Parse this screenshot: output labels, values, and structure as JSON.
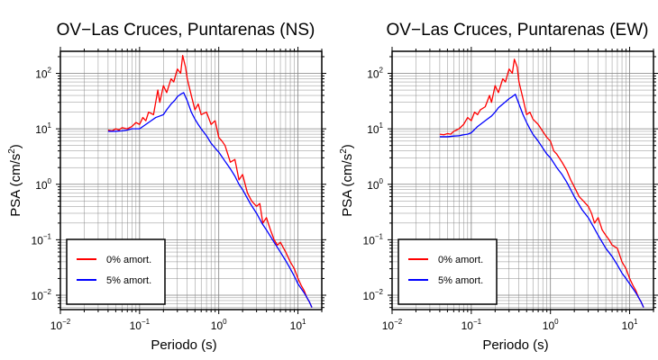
{
  "chart_data": [
    {
      "type": "line",
      "title": "OV−Las Cruces, Puntarenas (NS)",
      "xlabel": "Periodo (s)",
      "ylabel": "PSA (cm/s²)",
      "ylabel_base": "PSA (cm/s",
      "ylabel_sup": "2",
      "ylabel_end": ")",
      "xscale": "log",
      "yscale": "log",
      "xlim": [
        0.01,
        20
      ],
      "ylim": [
        0.0055,
        250
      ],
      "x_major_ticks": [
        0.01,
        0.1,
        1,
        10
      ],
      "y_major_ticks": [
        0.01,
        0.1,
        1,
        10,
        100
      ],
      "x_tick_labels": [
        {
          "base": "10",
          "exp": "−2"
        },
        {
          "base": "10",
          "exp": "−1"
        },
        {
          "base": "10",
          "exp": "0"
        },
        {
          "base": "10",
          "exp": "1"
        }
      ],
      "y_tick_labels": [
        {
          "base": "10",
          "exp": "−2"
        },
        {
          "base": "10",
          "exp": "−1"
        },
        {
          "base": "10",
          "exp": "0"
        },
        {
          "base": "10",
          "exp": "1"
        },
        {
          "base": "10",
          "exp": "2"
        }
      ],
      "grid": true,
      "legend_position": "bottom-left",
      "series": [
        {
          "name": "0% amort.",
          "color": "#ff0000",
          "x": [
            0.04,
            0.045,
            0.05,
            0.055,
            0.06,
            0.07,
            0.08,
            0.09,
            0.1,
            0.11,
            0.12,
            0.13,
            0.15,
            0.17,
            0.18,
            0.2,
            0.22,
            0.25,
            0.27,
            0.3,
            0.33,
            0.35,
            0.38,
            0.4,
            0.45,
            0.5,
            0.55,
            0.6,
            0.7,
            0.8,
            0.9,
            1.0,
            1.1,
            1.2,
            1.4,
            1.6,
            1.8,
            2.0,
            2.3,
            2.6,
            3.0,
            3.3,
            3.6,
            4.0,
            4.5,
            5.0,
            5.5,
            6.0,
            7.0,
            8.0,
            9.0,
            10,
            11,
            12,
            13,
            14,
            15
          ],
          "y": [
            9.5,
            9.2,
            10,
            9.5,
            10.5,
            10,
            11,
            13,
            12,
            16,
            14,
            20,
            18,
            50,
            30,
            60,
            45,
            80,
            70,
            120,
            100,
            210,
            130,
            80,
            40,
            22,
            28,
            18,
            20,
            12,
            14,
            7,
            6,
            5,
            2.5,
            2.8,
            1.2,
            1.5,
            0.7,
            0.5,
            0.4,
            0.45,
            0.2,
            0.25,
            0.15,
            0.1,
            0.08,
            0.09,
            0.06,
            0.04,
            0.03,
            0.02,
            0.015,
            0.012,
            0.009,
            0.0075,
            0.006
          ]
        },
        {
          "name": "5% amort.",
          "color": "#0000ff",
          "x": [
            0.04,
            0.05,
            0.06,
            0.07,
            0.08,
            0.09,
            0.1,
            0.12,
            0.14,
            0.16,
            0.18,
            0.2,
            0.22,
            0.25,
            0.28,
            0.3,
            0.33,
            0.36,
            0.4,
            0.45,
            0.5,
            0.55,
            0.6,
            0.7,
            0.8,
            0.9,
            1.0,
            1.2,
            1.4,
            1.6,
            1.8,
            2.0,
            2.5,
            3.0,
            3.5,
            4.0,
            5.0,
            6.0,
            7.0,
            8.0,
            9.0,
            10,
            12,
            14,
            15
          ],
          "y": [
            9.0,
            9.0,
            9.2,
            9.5,
            10,
            10,
            10,
            12,
            14,
            16,
            17,
            18,
            22,
            28,
            33,
            38,
            42,
            45,
            32,
            20,
            15,
            12,
            10,
            7.5,
            5.5,
            4.5,
            3.8,
            2.6,
            1.9,
            1.4,
            1.0,
            0.8,
            0.45,
            0.3,
            0.2,
            0.15,
            0.09,
            0.06,
            0.042,
            0.03,
            0.022,
            0.016,
            0.011,
            0.0075,
            0.006
          ]
        }
      ]
    },
    {
      "type": "line",
      "title": "OV−Las Cruces, Puntarenas (EW)",
      "xlabel": "Periodo (s)",
      "ylabel": "PSA (cm/s²)",
      "ylabel_base": "PSA (cm/s",
      "ylabel_sup": "2",
      "ylabel_end": ")",
      "xscale": "log",
      "yscale": "log",
      "xlim": [
        0.01,
        20
      ],
      "ylim": [
        0.0055,
        250
      ],
      "x_major_ticks": [
        0.01,
        0.1,
        1,
        10
      ],
      "y_major_ticks": [
        0.01,
        0.1,
        1,
        10,
        100
      ],
      "x_tick_labels": [
        {
          "base": "10",
          "exp": "−2"
        },
        {
          "base": "10",
          "exp": "−1"
        },
        {
          "base": "10",
          "exp": "0"
        },
        {
          "base": "10",
          "exp": "1"
        }
      ],
      "y_tick_labels": [
        {
          "base": "10",
          "exp": "−2"
        },
        {
          "base": "10",
          "exp": "−1"
        },
        {
          "base": "10",
          "exp": "0"
        },
        {
          "base": "10",
          "exp": "1"
        },
        {
          "base": "10",
          "exp": "2"
        }
      ],
      "grid": true,
      "legend_position": "bottom-left",
      "series": [
        {
          "name": "0% amort.",
          "color": "#ff0000",
          "x": [
            0.04,
            0.045,
            0.05,
            0.055,
            0.06,
            0.07,
            0.08,
            0.09,
            0.1,
            0.11,
            0.12,
            0.13,
            0.15,
            0.17,
            0.18,
            0.2,
            0.22,
            0.25,
            0.27,
            0.3,
            0.33,
            0.35,
            0.38,
            0.4,
            0.45,
            0.5,
            0.55,
            0.6,
            0.7,
            0.8,
            0.9,
            1.0,
            1.1,
            1.2,
            1.4,
            1.6,
            1.8,
            2.0,
            2.3,
            2.6,
            3.0,
            3.3,
            3.6,
            4.0,
            4.5,
            5.0,
            5.5,
            6.0,
            7.0,
            8.0,
            9.0,
            10,
            11,
            12,
            13,
            14,
            15
          ],
          "y": [
            8,
            7.8,
            8.2,
            8,
            9,
            10,
            12,
            16,
            14,
            20,
            18,
            22,
            25,
            40,
            30,
            60,
            45,
            80,
            70,
            120,
            100,
            180,
            130,
            70,
            35,
            18,
            20,
            15,
            12,
            9,
            7,
            6,
            4,
            3.5,
            2.5,
            1.8,
            1.2,
            0.9,
            0.6,
            0.5,
            0.4,
            0.3,
            0.2,
            0.25,
            0.15,
            0.12,
            0.1,
            0.08,
            0.07,
            0.04,
            0.03,
            0.02,
            0.015,
            0.012,
            0.009,
            0.0075,
            0.006
          ]
        },
        {
          "name": "5% amort.",
          "color": "#0000ff",
          "x": [
            0.04,
            0.05,
            0.06,
            0.07,
            0.08,
            0.09,
            0.1,
            0.12,
            0.14,
            0.16,
            0.18,
            0.2,
            0.22,
            0.25,
            0.28,
            0.3,
            0.33,
            0.36,
            0.4,
            0.45,
            0.5,
            0.55,
            0.6,
            0.7,
            0.8,
            0.9,
            1.0,
            1.2,
            1.4,
            1.6,
            1.8,
            2.0,
            2.5,
            3.0,
            3.5,
            4.0,
            5.0,
            6.0,
            7.0,
            8.0,
            9.0,
            10,
            12,
            14,
            15
          ],
          "y": [
            7.2,
            7.2,
            7.4,
            7.5,
            7.8,
            8,
            8.5,
            11,
            13,
            15,
            17,
            20,
            24,
            28,
            32,
            35,
            38,
            42,
            28,
            18,
            13,
            10,
            8,
            6,
            4.5,
            3.5,
            3,
            2,
            1.5,
            1.1,
            0.8,
            0.6,
            0.35,
            0.25,
            0.17,
            0.12,
            0.07,
            0.05,
            0.035,
            0.025,
            0.02,
            0.016,
            0.011,
            0.0075,
            0.006
          ]
        }
      ]
    }
  ]
}
